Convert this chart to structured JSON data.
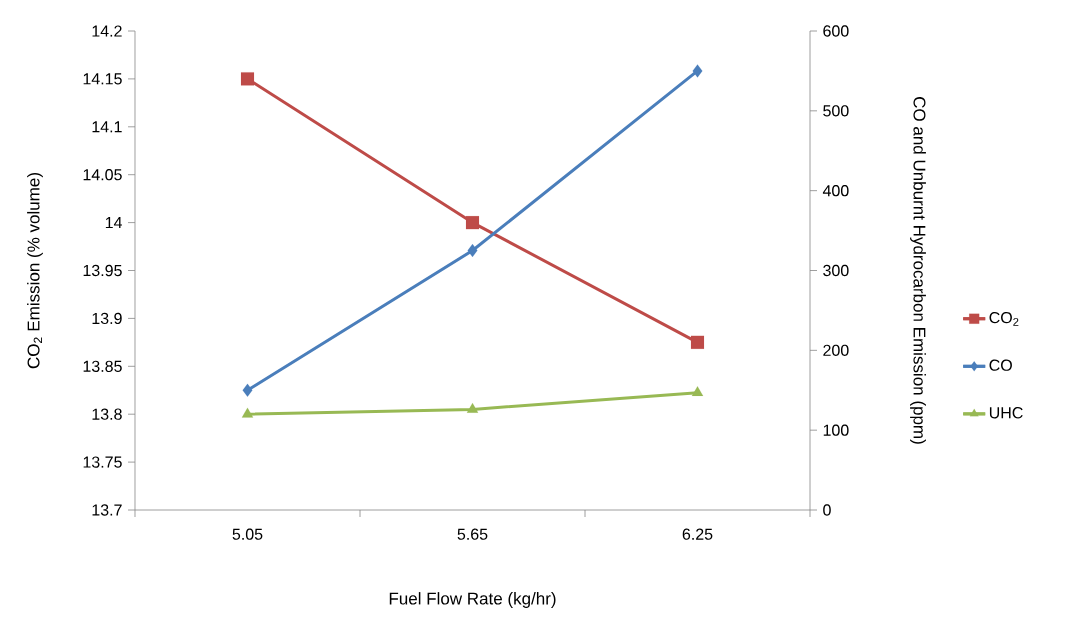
{
  "chart_data": {
    "type": "line",
    "xlabel": "Fuel Flow Rate (kg/hr)",
    "ylabel": "CO$_{2}$ Emission (% volume)",
    "y2label": "CO and Unburnt Hydrocarbon Emission (ppm)",
    "categories": [
      "5.05",
      "5.65",
      "6.25"
    ],
    "series": [
      {
        "name": "CO$_{2}$",
        "color": "#be4b48",
        "marker": "square",
        "values": [
          14.15,
          14.0,
          13.875
        ]
      },
      {
        "name": "CO",
        "color": "#4a7ebb",
        "marker": "diamond",
        "axis": "y2",
        "values": [
          150,
          325,
          550
        ]
      },
      {
        "name": "UHC",
        "color": "#98b954",
        "marker": "triangle",
        "axis": "y2",
        "values": [
          120,
          126,
          147
        ]
      }
    ],
    "ylim": [
      13.7,
      14.2
    ],
    "yticks": [
      13.7,
      13.75,
      13.8,
      13.85,
      13.9,
      13.95,
      14,
      14.05,
      14.1,
      14.15,
      14.2
    ],
    "y2lim": [
      0,
      600
    ],
    "y2ticks": [
      0,
      100,
      200,
      300,
      400,
      500,
      600
    ],
    "grid": false,
    "legend": "right",
    "line_style": "solid"
  }
}
